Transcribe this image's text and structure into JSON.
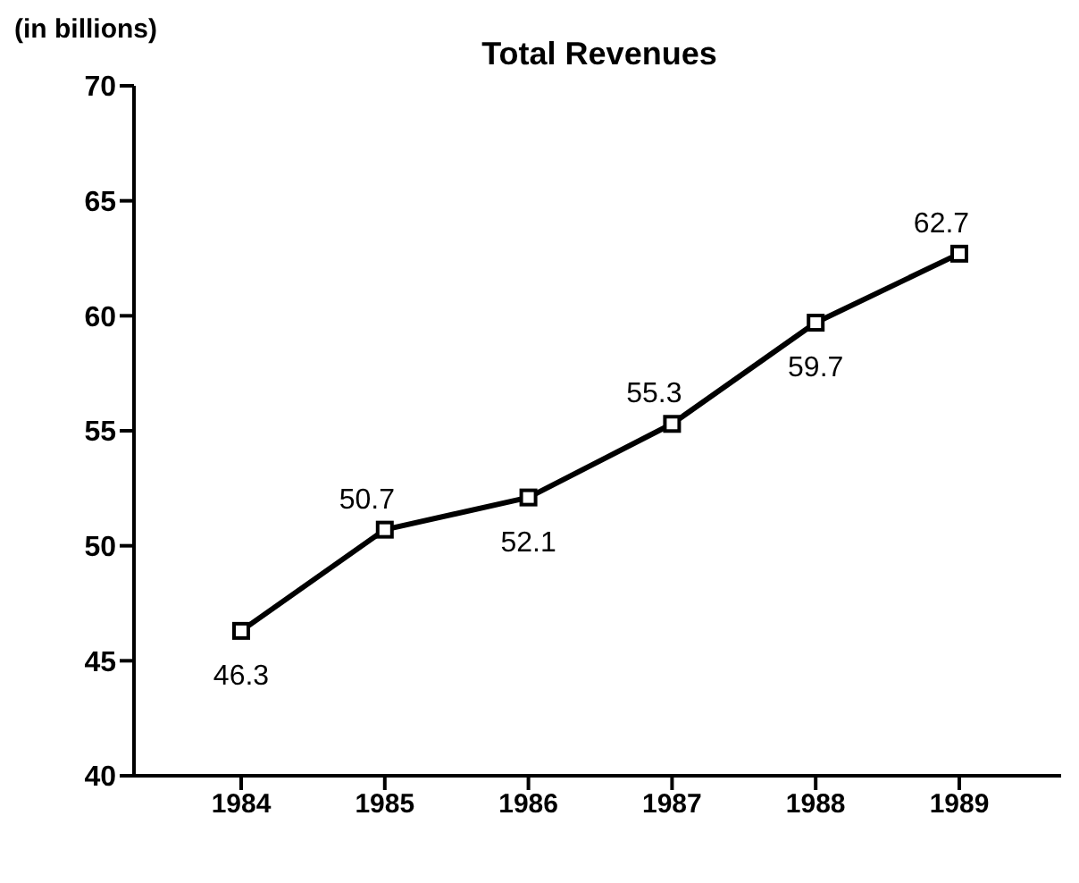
{
  "chart_data": {
    "type": "line",
    "title": "Total Revenues",
    "ylabel": "(in billions)",
    "categories": [
      "1984",
      "1985",
      "1986",
      "1987",
      "1988",
      "1989"
    ],
    "series": [
      {
        "color": "#000000",
        "values": [
          46.3,
          50.7,
          52.1,
          55.3,
          59.7,
          62.7
        ]
      }
    ],
    "ylim": [
      40,
      70
    ],
    "yticks": [
      40,
      45,
      50,
      55,
      60,
      65,
      70
    ],
    "data_labels": true,
    "marker": "square",
    "line_style": "solid",
    "grid": false,
    "legend": false
  }
}
